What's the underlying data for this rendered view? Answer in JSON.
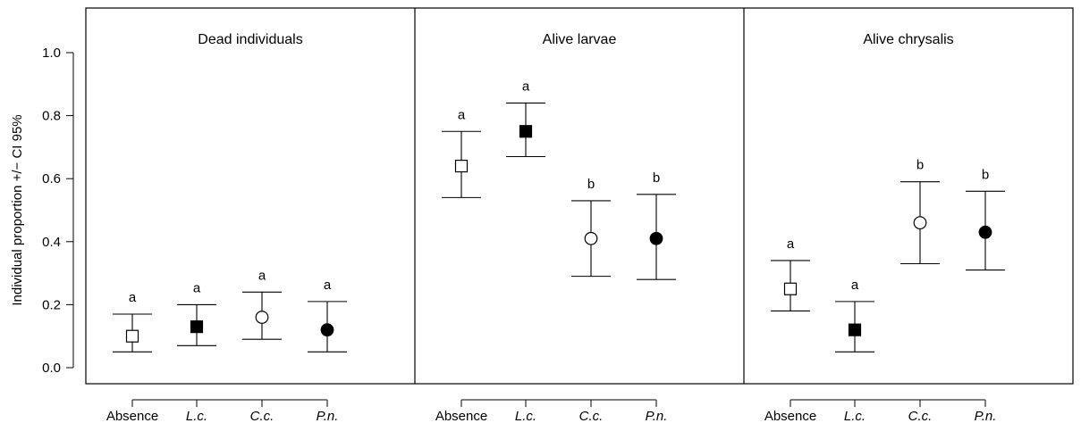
{
  "chart_data": {
    "type": "scatter",
    "ylabel": "Individual proportion +/− CI 95%",
    "ylim": [
      0,
      1.0
    ],
    "yticks": [
      "0.0",
      "0.2",
      "0.4",
      "0.6",
      "0.8",
      "1.0"
    ],
    "categories": [
      "Absence",
      "L.c.",
      "C.c.",
      "P.n."
    ],
    "category_italic": [
      false,
      true,
      true,
      true
    ],
    "markers": [
      "open-square",
      "filled-square",
      "open-circle",
      "filled-circle"
    ],
    "panels": [
      {
        "title": "Dead individuals",
        "points": [
          {
            "category": "Absence",
            "value": 0.1,
            "lower": 0.05,
            "upper": 0.17,
            "group": "a"
          },
          {
            "category": "L.c.",
            "value": 0.13,
            "lower": 0.07,
            "upper": 0.2,
            "group": "a"
          },
          {
            "category": "C.c.",
            "value": 0.16,
            "lower": 0.09,
            "upper": 0.24,
            "group": "a"
          },
          {
            "category": "P.n.",
            "value": 0.12,
            "lower": 0.05,
            "upper": 0.21,
            "group": "a"
          }
        ]
      },
      {
        "title": "Alive larvae",
        "points": [
          {
            "category": "Absence",
            "value": 0.64,
            "lower": 0.54,
            "upper": 0.75,
            "group": "a"
          },
          {
            "category": "L.c.",
            "value": 0.75,
            "lower": 0.67,
            "upper": 0.84,
            "group": "a"
          },
          {
            "category": "C.c.",
            "value": 0.41,
            "lower": 0.29,
            "upper": 0.53,
            "group": "b"
          },
          {
            "category": "P.n.",
            "value": 0.41,
            "lower": 0.28,
            "upper": 0.55,
            "group": "b"
          }
        ]
      },
      {
        "title": "Alive chrysalis",
        "points": [
          {
            "category": "Absence",
            "value": 0.25,
            "lower": 0.18,
            "upper": 0.34,
            "group": "a"
          },
          {
            "category": "L.c.",
            "value": 0.12,
            "lower": 0.05,
            "upper": 0.21,
            "group": "a"
          },
          {
            "category": "C.c.",
            "value": 0.46,
            "lower": 0.33,
            "upper": 0.59,
            "group": "b"
          },
          {
            "category": "P.n.",
            "value": 0.43,
            "lower": 0.31,
            "upper": 0.56,
            "group": "b"
          }
        ]
      }
    ]
  }
}
